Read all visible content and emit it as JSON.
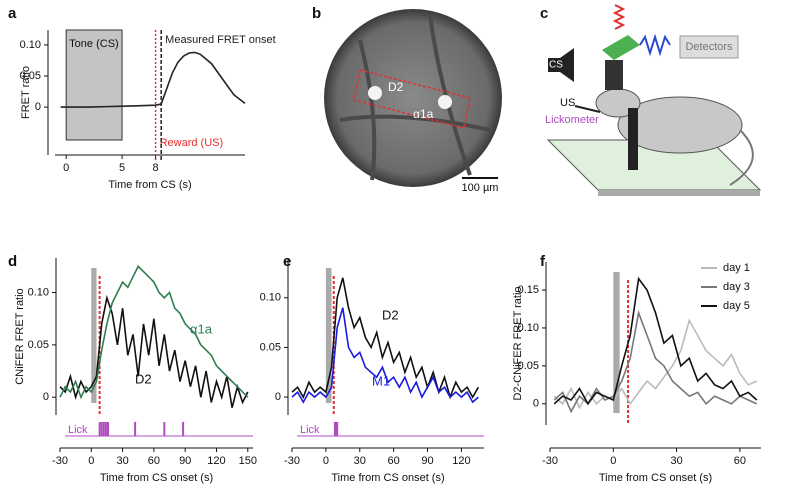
{
  "chart_data": [
    {
      "type": "line",
      "panel": "a",
      "ylabel": "FRET ratio",
      "xlabel": "Time from CS (s)",
      "xlim": [
        -1,
        16
      ],
      "ylim": [
        -0.077,
        0.124
      ],
      "xticks": [
        0,
        5,
        8
      ],
      "yticks": [
        0,
        0.05,
        {
          "value": 0.1,
          "label": "0.10"
        }
      ],
      "shade": {
        "label": "Tone (CS)",
        "x": [
          0,
          5
        ]
      },
      "events": [
        {
          "x": 8,
          "label": "Reward (US)",
          "color": "#e03030"
        },
        {
          "x": 8.5,
          "label": "Measured FRET onset",
          "color": "#222222"
        }
      ],
      "x": [
        -0.5,
        0,
        2,
        4,
        6,
        8,
        8.5,
        9,
        9.5,
        10,
        10.5,
        11,
        11.5,
        12,
        13,
        14,
        15,
        16
      ],
      "series": [
        {
          "color": "#222222",
          "values": [
            0,
            0,
            0,
            0.001,
            0.002,
            0.003,
            0.005,
            0.03,
            0.055,
            0.072,
            0.082,
            0.087,
            0.088,
            0.085,
            0.07,
            0.045,
            0.02,
            0.006
          ]
        }
      ]
    },
    {
      "type": "image",
      "panel": "b",
      "labels": [
        "D2",
        "α1a"
      ],
      "scale_bar": "100 µm"
    },
    {
      "type": "diagram",
      "panel": "c",
      "labels": [
        "CS",
        "Detectors",
        "US",
        "Lickometer"
      ]
    },
    {
      "type": "line",
      "panel": "d",
      "ylabel": "CNiFER FRET ratio",
      "xlabel": "Time from CS onset (s)",
      "xlim": [
        -30,
        155
      ],
      "ylim": [
        -0.017,
        0.133
      ],
      "xticks": [
        -30,
        0,
        30,
        60,
        90,
        120,
        150
      ],
      "yticks": [
        0,
        0.05,
        {
          "value": 0.1,
          "label": "0.10"
        }
      ],
      "cs": [
        0,
        5
      ],
      "us": 8,
      "licks": {
        "label": "Lick",
        "x": [
          8,
          10,
          12,
          14,
          16,
          42,
          70,
          88
        ]
      },
      "legend": "inline",
      "x": [
        -30,
        -25,
        -20,
        -15,
        -10,
        -5,
        0,
        5,
        10,
        15,
        20,
        25,
        30,
        35,
        40,
        45,
        50,
        55,
        60,
        65,
        70,
        75,
        80,
        85,
        90,
        95,
        100,
        105,
        110,
        115,
        120,
        125,
        130,
        135,
        140,
        145,
        150
      ],
      "series": [
        {
          "name": "D2",
          "color": "#111111",
          "values": [
            0.01,
            0.005,
            0.02,
            0.0,
            0.015,
            0.005,
            0.01,
            0.02,
            0.07,
            0.095,
            0.08,
            0.05,
            0.085,
            0.04,
            0.06,
            0.02,
            0.07,
            0.04,
            0.075,
            0.03,
            0.06,
            0.025,
            0.045,
            0.015,
            0.035,
            0.01,
            0.03,
            0.0,
            0.025,
            -0.005,
            0.015,
            0.0,
            0.02,
            -0.01,
            0.01,
            -0.005,
            0.005
          ]
        },
        {
          "name": "α1a",
          "color": "#2e7d4f",
          "values": [
            0.0,
            0.01,
            0.005,
            0.015,
            0.0,
            0.01,
            0.005,
            0.015,
            0.045,
            0.07,
            0.09,
            0.1,
            0.11,
            0.105,
            0.115,
            0.125,
            0.12,
            0.115,
            0.11,
            0.1,
            0.095,
            0.1,
            0.085,
            0.08,
            0.07,
            0.065,
            0.06,
            0.05,
            0.045,
            0.04,
            0.03,
            0.025,
            0.02,
            0.015,
            0.01,
            0.005,
            0.0
          ]
        }
      ]
    },
    {
      "type": "line",
      "panel": "e",
      "xlabel": "Time from CS onset (s)",
      "xlim": [
        -30,
        140
      ],
      "ylim": [
        -0.018,
        0.14
      ],
      "xticks": [
        -30,
        0,
        30,
        60,
        90,
        120
      ],
      "yticks": [
        0,
        0.05,
        {
          "value": 0.1,
          "label": "0.10"
        }
      ],
      "cs": [
        0,
        5
      ],
      "us": 7,
      "licks": {
        "label": "Lick",
        "x": [
          8,
          9,
          10
        ]
      },
      "legend": "inline",
      "x": [
        -30,
        -25,
        -20,
        -15,
        -10,
        -5,
        0,
        5,
        10,
        15,
        20,
        25,
        30,
        35,
        40,
        45,
        50,
        55,
        60,
        65,
        70,
        75,
        80,
        85,
        90,
        95,
        100,
        105,
        110,
        115,
        120,
        125,
        130,
        135
      ],
      "series": [
        {
          "name": "D2",
          "color": "#111111",
          "values": [
            0.005,
            0.01,
            0.0,
            0.015,
            0.005,
            0.01,
            0.005,
            0.03,
            0.1,
            0.12,
            0.09,
            0.07,
            0.08,
            0.06,
            0.05,
            0.065,
            0.04,
            0.055,
            0.035,
            0.045,
            0.025,
            0.04,
            0.02,
            0.03,
            0.01,
            0.025,
            0.005,
            0.02,
            0.0,
            0.015,
            0.005,
            0.01,
            0.0,
            0.01
          ]
        },
        {
          "name": "M1",
          "color": "#1a1ae0",
          "values": [
            0.0,
            0.005,
            -0.005,
            0.005,
            0.0,
            0.005,
            0.0,
            0.01,
            0.07,
            0.09,
            0.05,
            0.04,
            0.045,
            0.03,
            0.025,
            0.02,
            0.03,
            0.015,
            0.02,
            0.01,
            0.02,
            0.005,
            0.015,
            0.0,
            0.01,
            0.02,
            0.005,
            0.01,
            0.0,
            0.005,
            0.0,
            0.005,
            -0.005,
            0.0
          ]
        }
      ]
    },
    {
      "type": "line",
      "panel": "f",
      "ylabel": "D2-CNiFER FRET ratio",
      "xlabel": "Time from CS onset (s)",
      "xlim": [
        -30,
        70
      ],
      "ylim": [
        -0.028,
        0.187
      ],
      "xticks": [
        -30,
        0,
        30,
        60
      ],
      "yticks": [
        0,
        0.05,
        {
          "value": 0.1,
          "label": "0.10"
        },
        0.15
      ],
      "cs": [
        0,
        3
      ],
      "us": 7,
      "legend": "top-right",
      "x": [
        -28,
        -24,
        -20,
        -16,
        -12,
        -8,
        -4,
        0,
        4,
        8,
        12,
        16,
        20,
        24,
        28,
        32,
        36,
        40,
        44,
        48,
        52,
        56,
        60,
        64,
        68
      ],
      "series": [
        {
          "name": "day 1",
          "color": "#bbbbbb",
          "values": [
            0.01,
            0.0,
            0.02,
            -0.005,
            0.015,
            0.0,
            0.01,
            0.005,
            0.02,
            0.0,
            0.015,
            0.03,
            0.02,
            0.035,
            0.05,
            0.07,
            0.11,
            0.09,
            0.07,
            0.06,
            0.05,
            0.065,
            0.04,
            0.025,
            0.03
          ]
        },
        {
          "name": "day 3",
          "color": "#777777",
          "values": [
            0.005,
            0.015,
            -0.01,
            0.01,
            0.0,
            0.02,
            0.005,
            0.01,
            0.03,
            0.06,
            0.12,
            0.09,
            0.06,
            0.05,
            0.03,
            0.02,
            0.01,
            0.015,
            0.0,
            0.01,
            0.005,
            0.0,
            0.01,
            0.005,
            0.0
          ]
        },
        {
          "name": "day 5",
          "color": "#111111",
          "values": [
            0.0,
            0.01,
            0.005,
            0.02,
            0.0,
            0.015,
            0.01,
            0.005,
            0.05,
            0.09,
            0.165,
            0.15,
            0.12,
            0.08,
            0.09,
            0.05,
            0.06,
            0.03,
            0.04,
            0.025,
            0.02,
            0.03,
            0.01,
            0.015,
            0.005
          ]
        }
      ]
    }
  ]
}
